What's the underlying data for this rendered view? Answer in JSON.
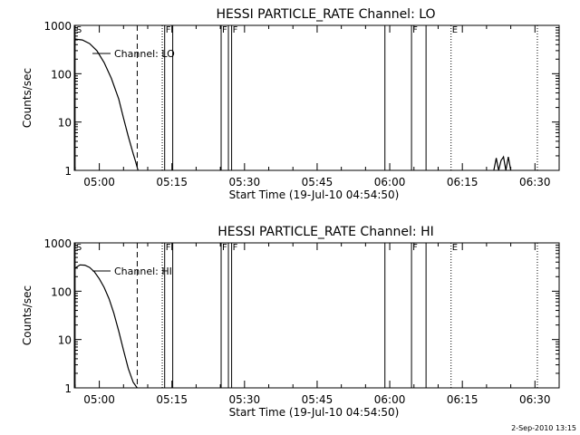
{
  "footer_text": "2-Sep-2010 13:15",
  "chart_data": [
    {
      "type": "line",
      "title": "HESSI PARTICLE_RATE Channel: LO",
      "ylabel": "Counts/sec",
      "xlabel": "Start Time (19-Jul-10 04:54:50)",
      "yscale": "log",
      "ylim": [
        1,
        1000
      ],
      "ytick_labels": [
        "1",
        "10",
        "100",
        "1000"
      ],
      "xlim": [
        "04:54:50",
        "06:35:00"
      ],
      "xtick_labels": [
        "05:00",
        "05:15",
        "05:30",
        "05:45",
        "06:00",
        "06:15",
        "06:30"
      ],
      "legend": "Channel: LO",
      "legend_position": "upper-left",
      "series": [
        {
          "x": [
            "04:55:00",
            "04:56:30",
            "04:58:00",
            "04:59:30",
            "05:01:00",
            "05:02:30",
            "05:04:00",
            "05:05:00",
            "05:06:00",
            "05:07:00",
            "05:07:30",
            "05:08:00"
          ],
          "y": [
            520,
            500,
            420,
            300,
            170,
            80,
            30,
            12,
            5,
            2.2,
            1.5,
            1.0
          ]
        },
        {
          "x": [
            "06:21:30",
            "06:22:00",
            "06:22:30",
            "06:23:00",
            "06:23:30",
            "06:24:00",
            "06:24:30",
            "06:25:00"
          ],
          "y": [
            1,
            1.8,
            1,
            1.6,
            1.9,
            1,
            1.9,
            1
          ]
        }
      ],
      "markers": [
        {
          "time": "04:55:00",
          "style": "solid",
          "label": "S"
        },
        {
          "time": "05:07:50",
          "style": "dashed",
          "label": ""
        },
        {
          "time": "05:13:00",
          "style": "dotted",
          "label": ""
        },
        {
          "time": "05:13:30",
          "style": "solid",
          "label": "F"
        },
        {
          "time": "05:15:10",
          "style": "solid",
          "label": ""
        },
        {
          "time": "05:25:10",
          "style": "solid",
          "label": "F"
        },
        {
          "time": "05:26:40",
          "style": "solid",
          "label": ""
        },
        {
          "time": "05:27:20",
          "style": "solid",
          "label": "F"
        },
        {
          "time": "05:59:00",
          "style": "solid",
          "label": ""
        },
        {
          "time": "06:04:30",
          "style": "solid",
          "label": "F"
        },
        {
          "time": "06:07:30",
          "style": "solid",
          "label": ""
        },
        {
          "time": "06:12:40",
          "style": "dotted",
          "label": "E"
        },
        {
          "time": "06:30:30",
          "style": "dotted",
          "label": ""
        }
      ]
    },
    {
      "type": "line",
      "title": "HESSI PARTICLE_RATE Channel: HI",
      "ylabel": "Counts/sec",
      "xlabel": "Start Time (19-Jul-10 04:54:50)",
      "yscale": "log",
      "ylim": [
        1,
        1000
      ],
      "ytick_labels": [
        "1",
        "10",
        "100",
        "1000"
      ],
      "xlim": [
        "04:54:50",
        "06:35:00"
      ],
      "xtick_labels": [
        "05:00",
        "05:15",
        "05:30",
        "05:45",
        "06:00",
        "06:15",
        "06:30"
      ],
      "legend": "Channel: HI",
      "legend_position": "upper-left",
      "series": [
        {
          "x": [
            "04:55:00",
            "04:56:00",
            "04:57:00",
            "04:58:00",
            "04:59:00",
            "05:00:00",
            "05:01:00",
            "05:02:00",
            "05:03:00",
            "05:04:00",
            "05:05:00",
            "05:06:00",
            "05:07:00",
            "05:07:50"
          ],
          "y": [
            300,
            350,
            345,
            310,
            250,
            180,
            120,
            70,
            35,
            15,
            6,
            2.5,
            1.3,
            1.0
          ]
        }
      ],
      "markers": [
        {
          "time": "04:55:00",
          "style": "solid",
          "label": "S"
        },
        {
          "time": "05:07:50",
          "style": "dashed",
          "label": ""
        },
        {
          "time": "05:13:00",
          "style": "dotted",
          "label": ""
        },
        {
          "time": "05:13:30",
          "style": "solid",
          "label": "F"
        },
        {
          "time": "05:15:10",
          "style": "solid",
          "label": ""
        },
        {
          "time": "05:25:10",
          "style": "solid",
          "label": "F"
        },
        {
          "time": "05:26:40",
          "style": "solid",
          "label": ""
        },
        {
          "time": "05:27:20",
          "style": "solid",
          "label": "F"
        },
        {
          "time": "05:59:00",
          "style": "solid",
          "label": ""
        },
        {
          "time": "06:04:30",
          "style": "solid",
          "label": "F"
        },
        {
          "time": "06:07:30",
          "style": "solid",
          "label": ""
        },
        {
          "time": "06:12:40",
          "style": "dotted",
          "label": "E"
        },
        {
          "time": "06:30:30",
          "style": "dotted",
          "label": ""
        }
      ]
    }
  ]
}
